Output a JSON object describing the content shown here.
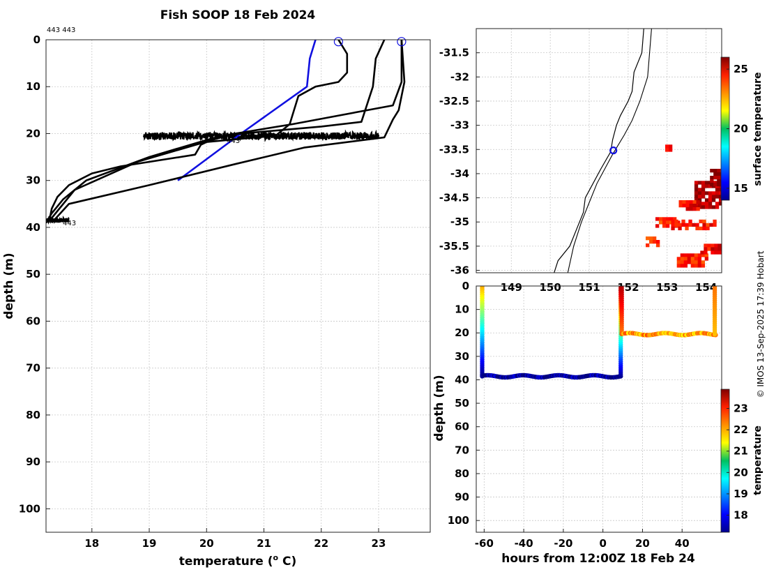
{
  "chart_data": [
    {
      "type": "line",
      "title": "Fish SOOP 18 Feb 2024",
      "xlabel": "temperature (",
      "xlabel_sup": "o",
      "xlabel_unit": " C)",
      "ylabel": "depth (m)",
      "xlim": [
        17.2,
        23.9
      ],
      "ylim": [
        105,
        0
      ],
      "xticks": [
        18,
        19,
        20,
        21,
        22,
        23
      ],
      "yticks": [
        0,
        10,
        20,
        30,
        40,
        50,
        60,
        70,
        80,
        90,
        100
      ],
      "annotations": [
        "443 443",
        "443",
        "443"
      ],
      "series": [
        {
          "name": "profile-blue",
          "color": "#1010e0",
          "points": [
            [
              21.9,
              0
            ],
            [
              21.8,
              4
            ],
            [
              21.75,
              10
            ],
            [
              20.6,
              20
            ],
            [
              19.5,
              30
            ]
          ]
        },
        {
          "name": "profile-1",
          "color": "#000000",
          "points": [
            [
              22.3,
              0
            ],
            [
              22.45,
              3
            ],
            [
              22.45,
              7
            ],
            [
              22.3,
              9
            ],
            [
              21.9,
              10
            ],
            [
              21.6,
              12
            ],
            [
              21.5,
              16
            ],
            [
              21.45,
              18
            ],
            [
              21.2,
              20.5
            ],
            [
              20.7,
              21
            ],
            [
              20.0,
              21.8
            ],
            [
              19.9,
              22.4
            ],
            [
              19.8,
              24.5
            ],
            [
              18.5,
              27
            ],
            [
              18.0,
              28.5
            ],
            [
              17.6,
              31
            ],
            [
              17.4,
              33.5
            ],
            [
              17.3,
              36
            ],
            [
              17.25,
              39
            ]
          ]
        },
        {
          "name": "profile-2",
          "color": "#000000",
          "points": [
            [
              23.1,
              0
            ],
            [
              22.95,
              4
            ],
            [
              22.9,
              10
            ],
            [
              22.7,
              17.5
            ],
            [
              22.0,
              18.5
            ],
            [
              20.6,
              20
            ],
            [
              20.1,
              21
            ],
            [
              19.0,
              25
            ],
            [
              17.9,
              30
            ],
            [
              17.5,
              34
            ],
            [
              17.3,
              37
            ],
            [
              17.2,
              39
            ]
          ]
        },
        {
          "name": "profile-3",
          "color": "#000000",
          "points": [
            [
              23.4,
              0
            ],
            [
              23.4,
              9
            ],
            [
              23.25,
              14
            ],
            [
              21.5,
              18
            ],
            [
              20.5,
              20
            ],
            [
              20.2,
              21
            ],
            [
              18.8,
              26
            ],
            [
              17.7,
              32
            ],
            [
              17.3,
              38
            ],
            [
              17.2,
              39
            ]
          ]
        },
        {
          "name": "profile-4",
          "color": "#000000",
          "points": [
            [
              23.4,
              0
            ],
            [
              23.45,
              9
            ],
            [
              23.35,
              15
            ],
            [
              23.25,
              17
            ],
            [
              23.1,
              20.8
            ],
            [
              21.7,
              23
            ],
            [
              20.5,
              26.5
            ],
            [
              19.0,
              31
            ],
            [
              17.6,
              35
            ],
            [
              17.45,
              37
            ],
            [
              17.3,
              39
            ]
          ]
        }
      ],
      "dense_band": {
        "xmin": 18.9,
        "xmax": 23.0,
        "depth_center": 20.5,
        "depth_halfwidth": 0.8
      },
      "dense_band_2": {
        "xmin": 17.2,
        "xmax": 17.6,
        "depth_center": 38.5,
        "depth_halfwidth": 0.5
      },
      "start_markers": [
        [
          22.3,
          0.4
        ],
        [
          23.4,
          0.4
        ]
      ]
    },
    {
      "type": "heatmap",
      "xlim": [
        148.1,
        154.4
      ],
      "ylim": [
        -36.05,
        -31.0
      ],
      "yticks": [
        -31.5,
        -32,
        -32.5,
        -33,
        -33.5,
        -34,
        -34.5,
        -35,
        -35.5,
        -36
      ],
      "xticks": [
        149,
        150,
        151,
        152,
        153,
        154
      ],
      "vessel_marker": [
        151.62,
        -33.52
      ],
      "colorbar": {
        "label": "surface temperature",
        "min": 14,
        "max": 26,
        "ticks": [
          15,
          20,
          25
        ]
      },
      "coast": [
        [
          152.4,
          -31.0
        ],
        [
          152.35,
          -31.5
        ],
        [
          152.15,
          -31.9
        ],
        [
          152.1,
          -32.3
        ],
        [
          152.0,
          -32.5
        ],
        [
          151.8,
          -32.8
        ],
        [
          151.7,
          -33.0
        ],
        [
          151.6,
          -33.3
        ],
        [
          151.55,
          -33.55
        ],
        [
          151.3,
          -33.9
        ],
        [
          151.1,
          -34.2
        ],
        [
          150.9,
          -34.5
        ],
        [
          150.85,
          -34.8
        ],
        [
          150.7,
          -35.1
        ],
        [
          150.5,
          -35.5
        ],
        [
          150.2,
          -35.8
        ],
        [
          150.1,
          -36.05
        ]
      ],
      "isobath": [
        [
          152.6,
          -31.0
        ],
        [
          152.55,
          -31.5
        ],
        [
          152.5,
          -32.0
        ],
        [
          152.3,
          -32.5
        ],
        [
          152.1,
          -32.9
        ],
        [
          151.9,
          -33.2
        ],
        [
          151.6,
          -33.6
        ],
        [
          151.4,
          -33.9
        ],
        [
          151.2,
          -34.2
        ],
        [
          151.0,
          -34.6
        ],
        [
          150.8,
          -35.0
        ],
        [
          150.6,
          -35.5
        ],
        [
          150.45,
          -36.05
        ]
      ],
      "sst_patches": [
        {
          "lon": [
            153.7,
            154.4
          ],
          "lat": [
            -34.7,
            -34.15
          ],
          "value": 25.5
        },
        {
          "lon": [
            154.1,
            154.4
          ],
          "lat": [
            -34.2,
            -33.9
          ],
          "value": 25.8
        },
        {
          "lon": [
            153.3,
            153.75
          ],
          "lat": [
            -34.7,
            -34.55
          ],
          "value": 24.5
        },
        {
          "lon": [
            152.7,
            153.3
          ],
          "lat": [
            -35.05,
            -34.9
          ],
          "value": 24.0
        },
        {
          "lon": [
            153.1,
            154.2
          ],
          "lat": [
            -35.15,
            -34.95
          ],
          "value": 24.3
        },
        {
          "lon": [
            152.45,
            152.8
          ],
          "lat": [
            -35.5,
            -35.3
          ],
          "value": 23.8
        },
        {
          "lon": [
            153.25,
            154.0
          ],
          "lat": [
            -35.9,
            -35.65
          ],
          "value": 24.2
        },
        {
          "lon": [
            153.85,
            154.35
          ],
          "lat": [
            -35.65,
            -35.45
          ],
          "value": 24.6
        },
        {
          "lon": [
            152.95,
            153.05
          ],
          "lat": [
            -33.5,
            -33.4
          ],
          "value": 25.0
        }
      ]
    },
    {
      "type": "scatter",
      "xlabel": "hours from 12:00Z 18 Feb 24",
      "ylabel": "depth (m)",
      "xlim": [
        -64,
        60
      ],
      "ylim": [
        105,
        0
      ],
      "xticks": [
        -60,
        -40,
        -20,
        0,
        20,
        40
      ],
      "yticks": [
        0,
        10,
        20,
        30,
        40,
        50,
        60,
        70,
        80,
        90,
        100
      ],
      "colorbar": {
        "label": "temperature",
        "min": 17.2,
        "max": 23.9,
        "ticks": [
          18,
          19,
          20,
          21,
          22,
          23
        ]
      },
      "tracks": [
        {
          "name": "descent-1",
          "x": -61,
          "depth_from": 0,
          "depth_to": 38.5,
          "temp_from": 22.0,
          "temp_to": 17.3
        },
        {
          "name": "bottom-1",
          "x_from": -61,
          "x_to": 9,
          "depth": 38.5,
          "temp": 17.3
        },
        {
          "name": "ascent",
          "x": 9,
          "depth_from": 38.5,
          "depth_to": 0,
          "temp_from": 17.3,
          "temp_to": 23.6
        },
        {
          "name": "descent-2",
          "x": 9.5,
          "depth_from": 0,
          "depth_to": 20.5,
          "temp_from": 23.6,
          "temp_to": 22.3
        },
        {
          "name": "mid-1",
          "x_from": 9.5,
          "x_to": 57,
          "depth": 20.5,
          "temp": 22.0
        },
        {
          "name": "ascent-2",
          "x": 56.5,
          "depth_from": 20.5,
          "depth_to": 0,
          "temp_from": 21.8,
          "temp_to": 22.3
        }
      ]
    }
  ],
  "watermark": "© IMOS 13-Sep-2025 17:39 Hobart"
}
